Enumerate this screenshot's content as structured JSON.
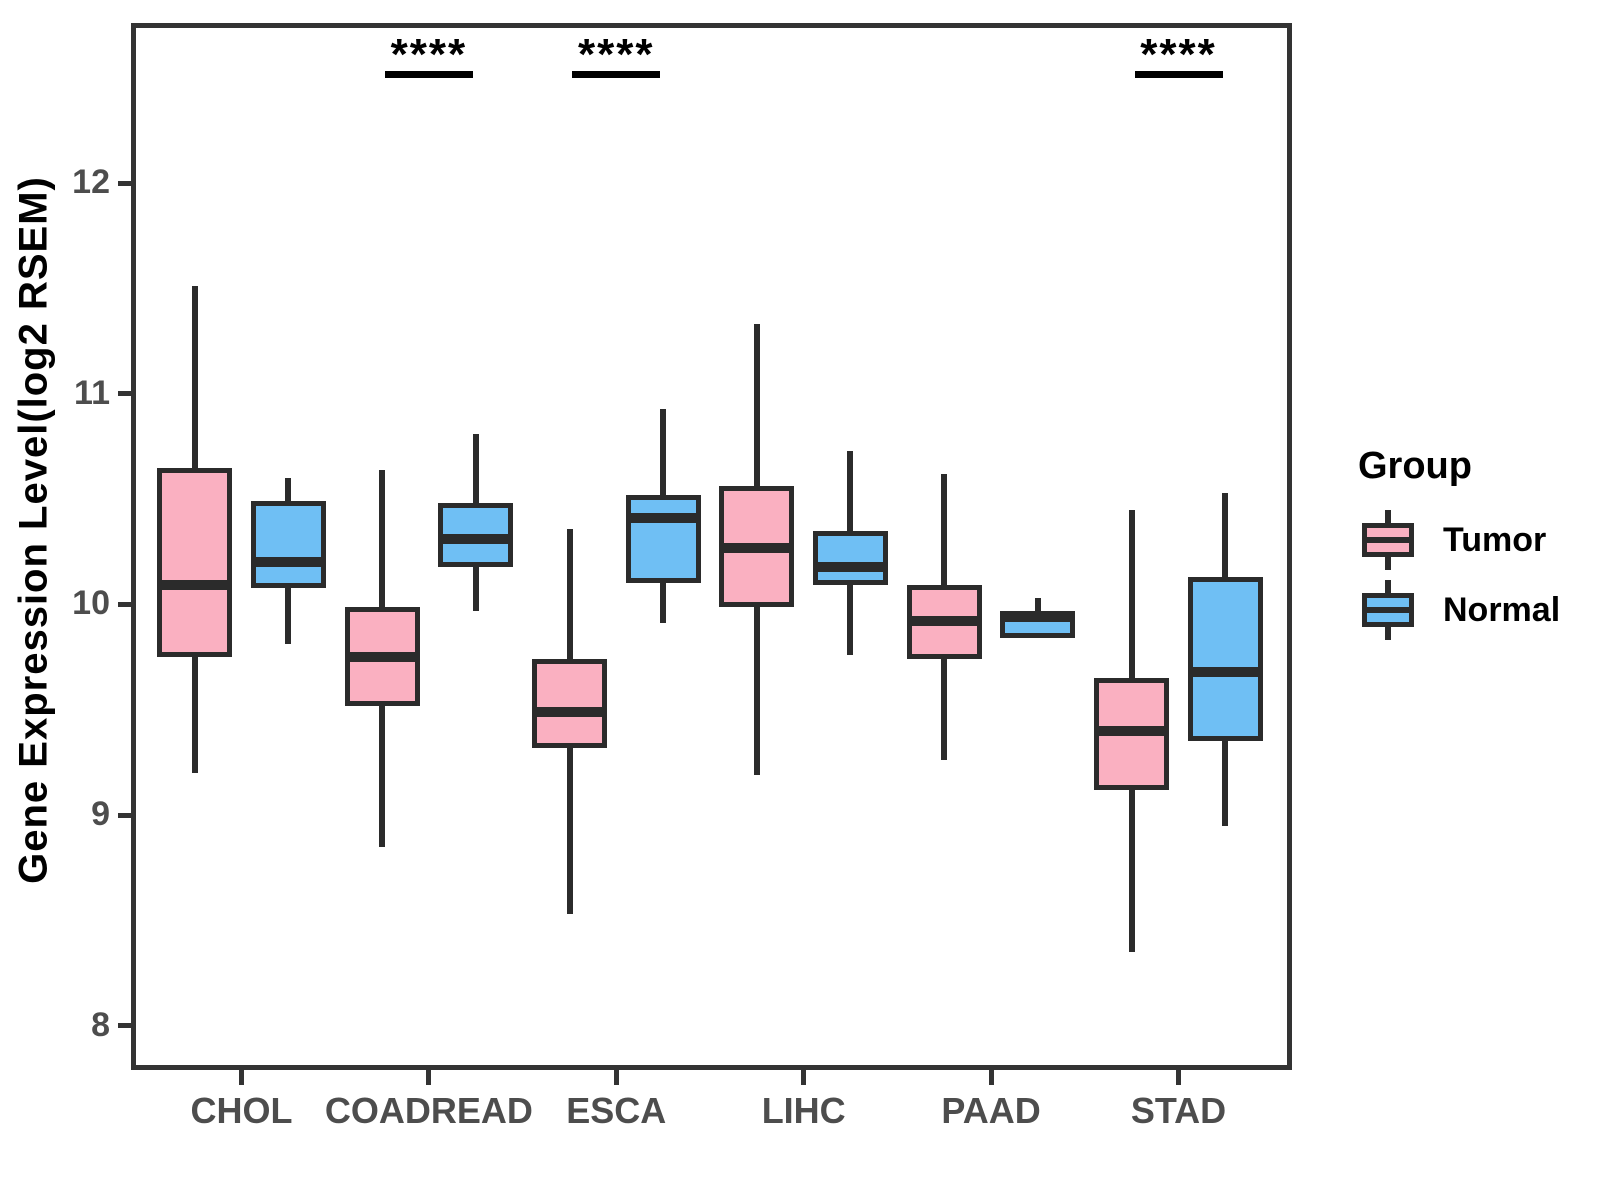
{
  "chart_data": {
    "type": "boxplot",
    "title": "",
    "xlabel": "",
    "ylabel": "Gene Expression Level(log2 RSEM)",
    "categories": [
      "CHOL",
      "COADREAD",
      "ESCA",
      "LIHC",
      "PAAD",
      "STAD"
    ],
    "y_ticks": [
      8,
      9,
      10,
      11,
      12
    ],
    "ylim": [
      7.79,
      12.76
    ],
    "grid": "off",
    "legend": {
      "title": "Group",
      "position": "right",
      "entries": [
        {
          "label": "Tumor",
          "color": "#FAB0C1"
        },
        {
          "label": "Normal",
          "color": "#6FBFF4"
        }
      ]
    },
    "series": [
      {
        "name": "Tumor",
        "color": "#FAB0C1",
        "boxes": [
          {
            "category": "CHOL",
            "min": 9.2,
            "q1": 9.75,
            "median": 10.09,
            "q3": 10.65,
            "max": 11.51
          },
          {
            "category": "COADREAD",
            "min": 8.85,
            "q1": 9.52,
            "median": 9.75,
            "q3": 9.99,
            "max": 10.64
          },
          {
            "category": "ESCA",
            "min": 8.53,
            "q1": 9.32,
            "median": 9.49,
            "q3": 9.74,
            "max": 10.36
          },
          {
            "category": "LIHC",
            "min": 9.19,
            "q1": 9.99,
            "median": 10.27,
            "q3": 10.56,
            "max": 11.33
          },
          {
            "category": "PAAD",
            "min": 9.26,
            "q1": 9.74,
            "median": 9.92,
            "q3": 10.09,
            "max": 10.62
          },
          {
            "category": "STAD",
            "min": 8.35,
            "q1": 9.12,
            "median": 9.4,
            "q3": 9.65,
            "max": 10.45
          }
        ]
      },
      {
        "name": "Normal",
        "color": "#6FBFF4",
        "boxes": [
          {
            "category": "CHOL",
            "min": 9.81,
            "q1": 10.08,
            "median": 10.2,
            "q3": 10.49,
            "max": 10.6
          },
          {
            "category": "COADREAD",
            "min": 9.97,
            "q1": 10.18,
            "median": 10.31,
            "q3": 10.48,
            "max": 10.81
          },
          {
            "category": "ESCA",
            "min": 9.91,
            "q1": 10.1,
            "median": 10.41,
            "q3": 10.52,
            "max": 10.93
          },
          {
            "category": "LIHC",
            "min": 9.76,
            "q1": 10.09,
            "median": 10.18,
            "q3": 10.35,
            "max": 10.73
          },
          {
            "category": "PAAD",
            "min": 9.84,
            "q1": 9.84,
            "median": 9.94,
            "q3": 9.97,
            "max": 10.03
          },
          {
            "category": "STAD",
            "min": 8.95,
            "q1": 9.35,
            "median": 9.68,
            "q3": 10.13,
            "max": 10.53
          }
        ]
      }
    ],
    "significance": [
      {
        "category": "COADREAD",
        "label": "****"
      },
      {
        "category": "ESCA",
        "label": "****"
      },
      {
        "category": "STAD",
        "label": "****"
      }
    ]
  },
  "styles": {
    "box_border": "#2B2B2B",
    "axis_color": "#333333",
    "tick_label_color": "#4D4D4D",
    "title_color": "#000000",
    "background": "#FFFFFF"
  }
}
